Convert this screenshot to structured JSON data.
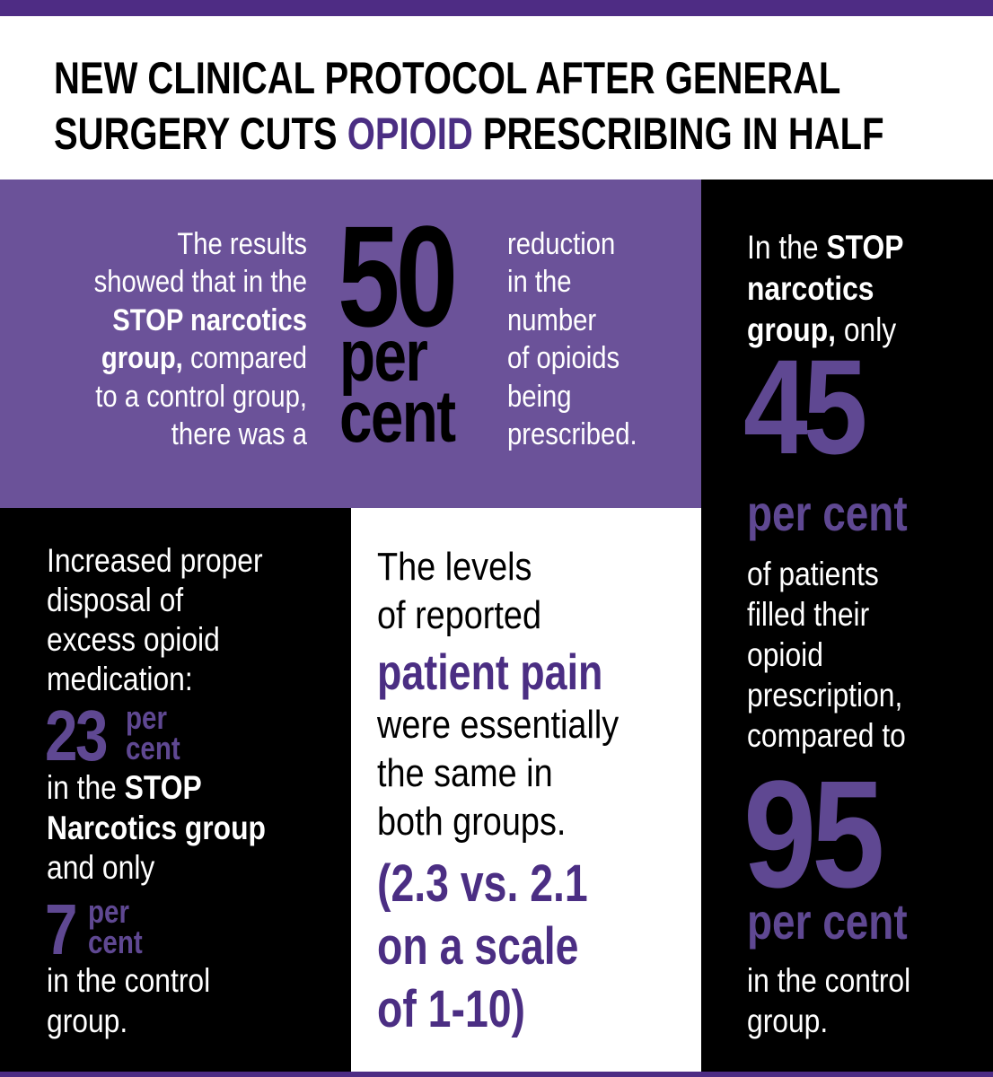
{
  "colors": {
    "purple_bar": "#4e2c84",
    "purple_block": "#6b5299",
    "purple_text_white_bg": "#4b2e83",
    "purple_text_black_bg": "#5f4892",
    "black": "#000000"
  },
  "title": {
    "line1": [
      {
        "t": "NEW CLINICAL PROTOCOL AFTER GENERAL"
      }
    ],
    "line2": [
      {
        "t": "SURGERY CUTS "
      },
      {
        "t": "OPIOID",
        "p": 1
      },
      {
        "t": " PRESCRIBING IN HALF"
      }
    ]
  },
  "top_left": {
    "lines": [
      [
        {
          "t": "The results"
        }
      ],
      [
        {
          "t": "showed that in the"
        }
      ],
      [
        {
          "t": "STOP narcotics",
          "b": 1
        }
      ],
      [
        {
          "t": "group,",
          "b": 1
        },
        {
          "t": " compared"
        }
      ],
      [
        {
          "t": "to a control group,"
        }
      ],
      [
        {
          "t": "there was a"
        }
      ]
    ],
    "number": "50",
    "unit1": "per",
    "unit2": "cent",
    "after": [
      [
        {
          "t": "reduction"
        }
      ],
      [
        {
          "t": "in the"
        }
      ],
      [
        {
          "t": "number"
        }
      ],
      [
        {
          "t": "of opioids"
        }
      ],
      [
        {
          "t": "being"
        }
      ],
      [
        {
          "t": "prescribed."
        }
      ]
    ]
  },
  "right": {
    "intro": [
      [
        {
          "t": "In the "
        },
        {
          "t": "STOP",
          "b": 1
        }
      ],
      [
        {
          "t": "narcotics",
          "b": 1
        }
      ],
      [
        {
          "t": "group,",
          "b": 1
        },
        {
          "t": " only"
        }
      ]
    ],
    "number1": "45",
    "unit": "per cent",
    "middle": [
      [
        {
          "t": "of patients"
        }
      ],
      [
        {
          "t": "filled their"
        }
      ],
      [
        {
          "t": "opioid"
        }
      ],
      [
        {
          "t": "prescription,"
        }
      ],
      [
        {
          "t": "compared to"
        }
      ]
    ],
    "number2": "95",
    "end": [
      [
        {
          "t": "in the control"
        }
      ],
      [
        {
          "t": "group."
        }
      ]
    ]
  },
  "left": {
    "intro": [
      [
        {
          "t": "Increased proper"
        }
      ],
      [
        {
          "t": "disposal of"
        }
      ],
      [
        {
          "t": "excess opioid"
        }
      ],
      [
        {
          "t": "medication:"
        }
      ]
    ],
    "number1": "23",
    "unit_per": "per",
    "unit_cent": "cent",
    "middle": [
      [
        {
          "t": "in the "
        },
        {
          "t": "STOP",
          "b": 1
        }
      ],
      [
        {
          "t": "Narcotics group",
          "b": 1
        }
      ],
      [
        {
          "t": "and only"
        }
      ]
    ],
    "number2": "7",
    "end": [
      [
        {
          "t": "in the control"
        }
      ],
      [
        {
          "t": "group."
        }
      ]
    ]
  },
  "middle": {
    "lines": [
      [
        {
          "t": "The levels"
        }
      ],
      [
        {
          "t": "of reported"
        }
      ]
    ],
    "highlight": "patient pain",
    "lines2": [
      [
        {
          "t": "were essentially"
        }
      ],
      [
        {
          "t": "the same in"
        }
      ],
      [
        {
          "t": "both groups."
        }
      ]
    ],
    "stats": [
      "(2.3 vs. 2.1",
      "on a scale",
      "of 1-10)"
    ]
  }
}
